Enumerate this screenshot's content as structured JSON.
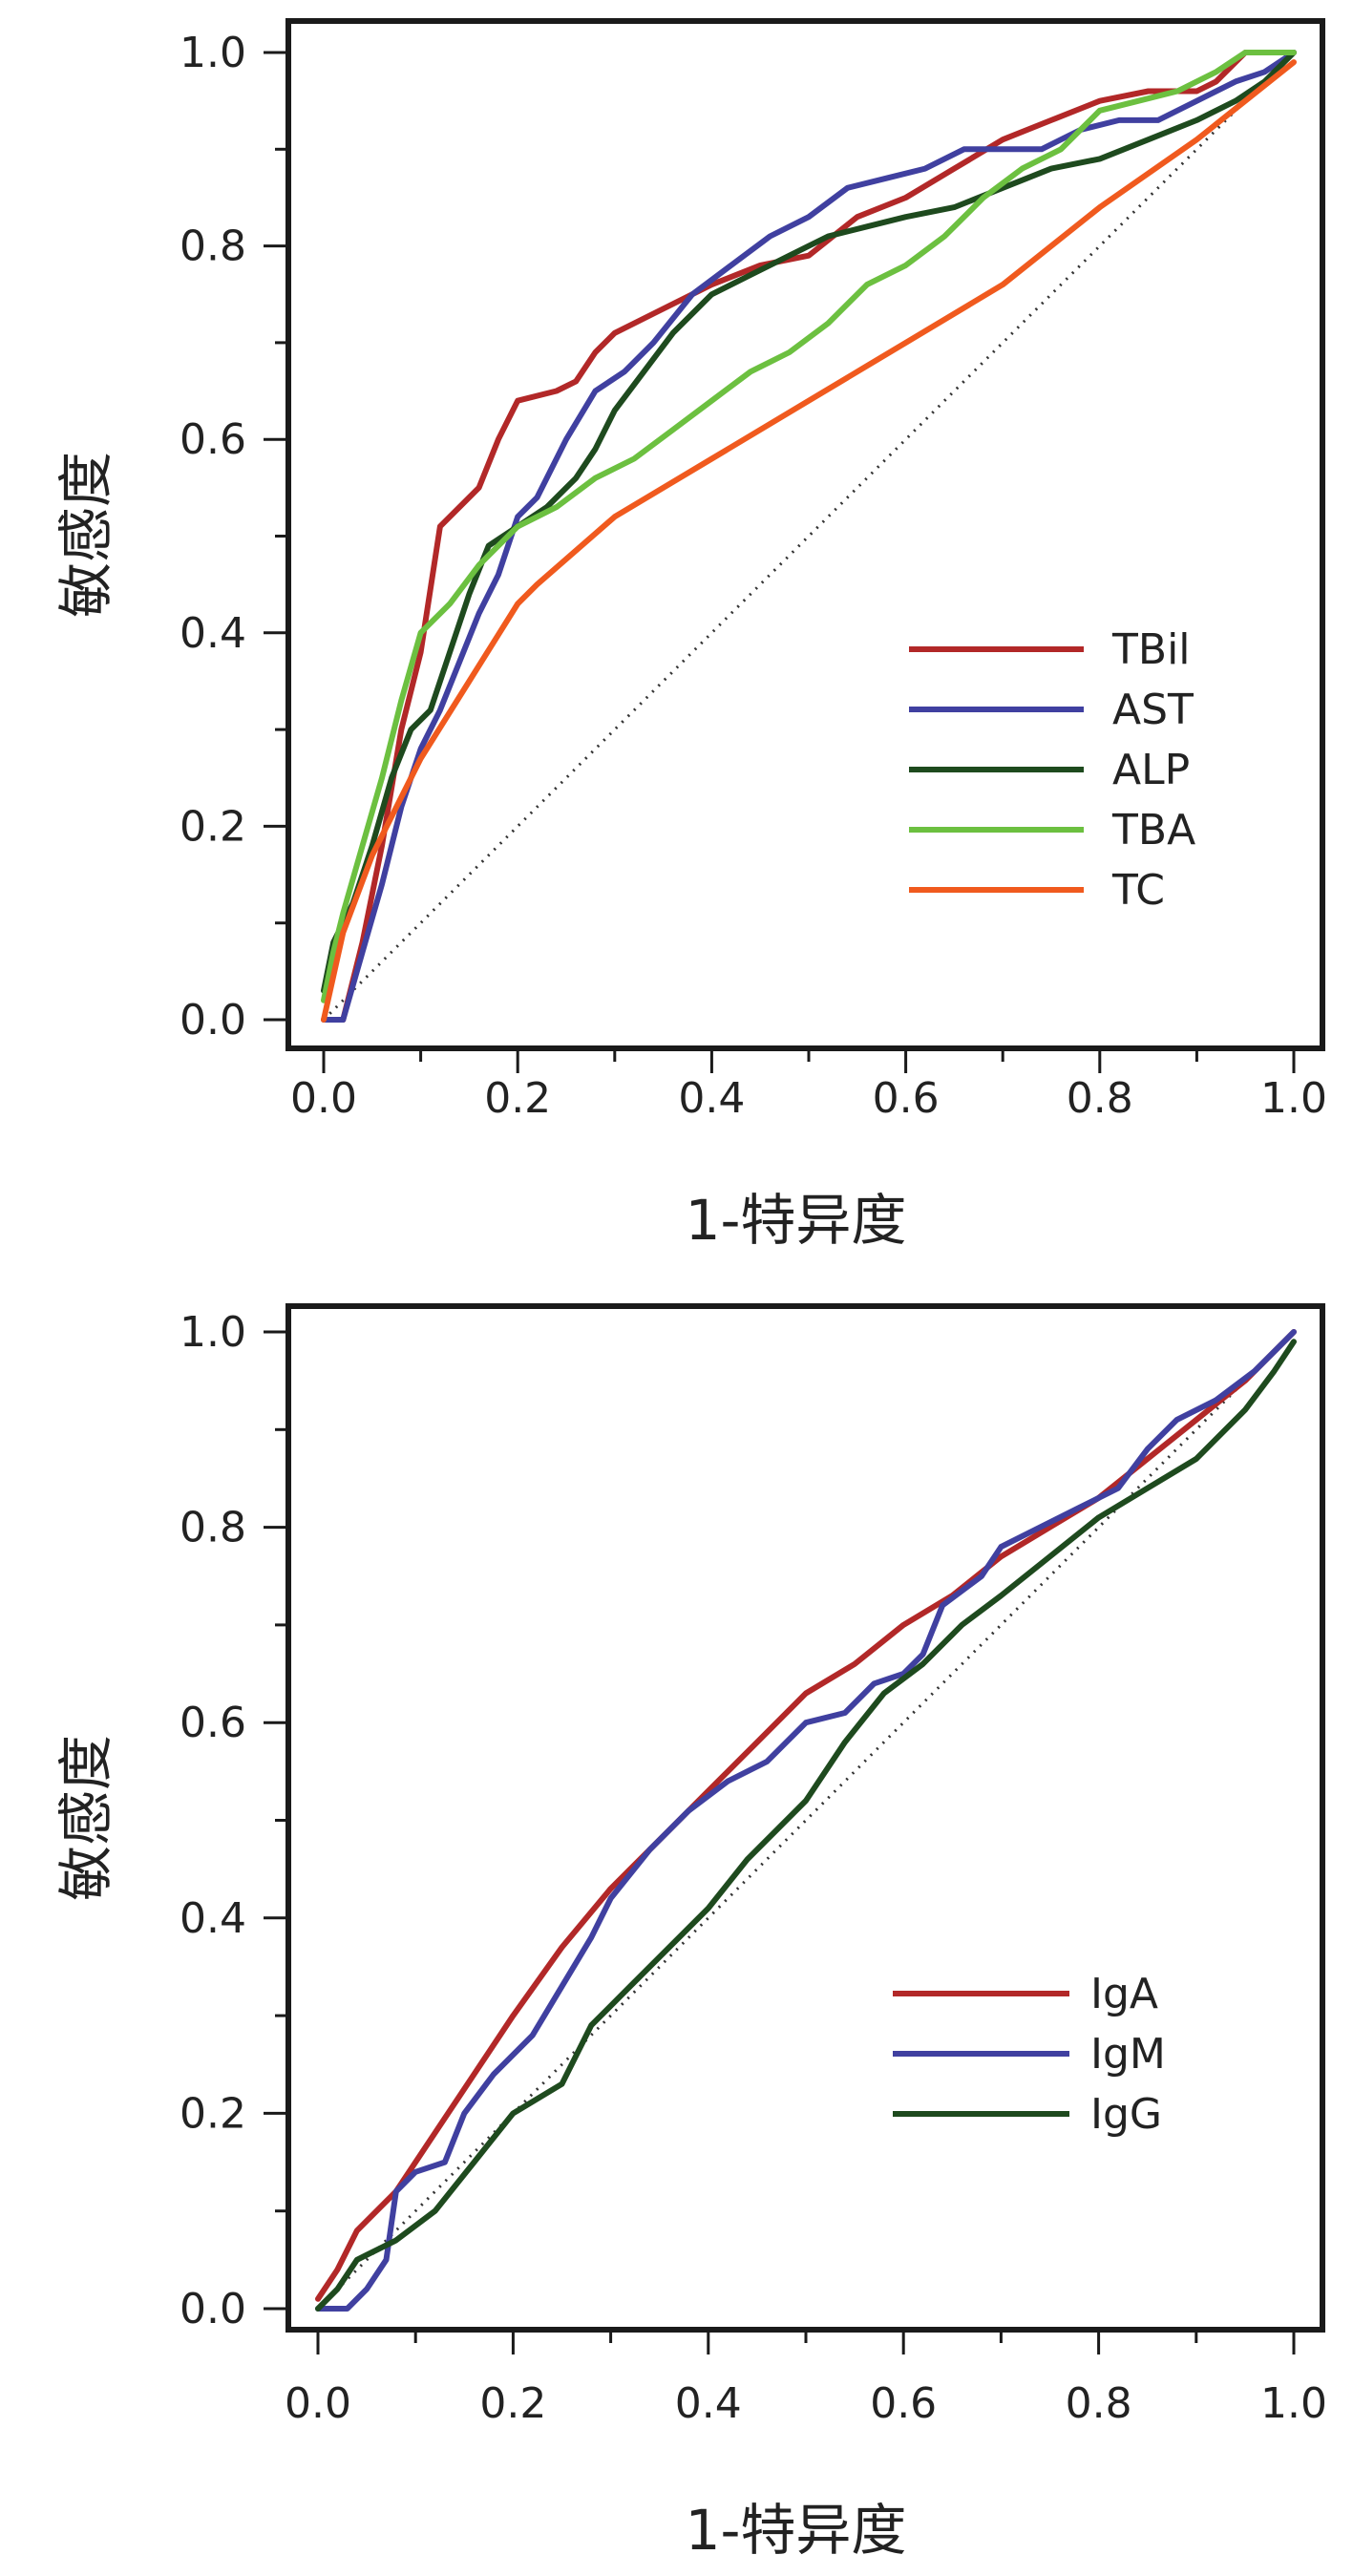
{
  "chart_data": [
    {
      "type": "line",
      "title": "",
      "xlabel": "1-特异度",
      "ylabel": "敏感度",
      "xlim": [
        0.0,
        1.0
      ],
      "ylim": [
        0.0,
        1.0
      ],
      "x_ticks": [
        "0.0",
        "0.2",
        "0.4",
        "0.6",
        "0.8",
        "1.0"
      ],
      "y_ticks": [
        "0.0",
        "0.2",
        "0.4",
        "0.6",
        "0.8",
        "1.0"
      ],
      "legend": "bottom-right",
      "reference_line": "diagonal-dotted",
      "series": [
        {
          "name": "TBil",
          "color": "#b22828",
          "points": [
            [
              0,
              0
            ],
            [
              0.02,
              0
            ],
            [
              0.04,
              0.08
            ],
            [
              0.06,
              0.18
            ],
            [
              0.08,
              0.3
            ],
            [
              0.1,
              0.38
            ],
            [
              0.12,
              0.51
            ],
            [
              0.14,
              0.53
            ],
            [
              0.16,
              0.55
            ],
            [
              0.18,
              0.6
            ],
            [
              0.2,
              0.64
            ],
            [
              0.24,
              0.65
            ],
            [
              0.26,
              0.66
            ],
            [
              0.28,
              0.69
            ],
            [
              0.3,
              0.71
            ],
            [
              0.34,
              0.73
            ],
            [
              0.4,
              0.76
            ],
            [
              0.45,
              0.78
            ],
            [
              0.5,
              0.79
            ],
            [
              0.55,
              0.83
            ],
            [
              0.6,
              0.85
            ],
            [
              0.65,
              0.88
            ],
            [
              0.7,
              0.91
            ],
            [
              0.75,
              0.93
            ],
            [
              0.8,
              0.95
            ],
            [
              0.85,
              0.96
            ],
            [
              0.9,
              0.96
            ],
            [
              0.92,
              0.97
            ],
            [
              0.95,
              1.0
            ],
            [
              0.98,
              1.0
            ],
            [
              1.0,
              1.0
            ]
          ]
        },
        {
          "name": "AST",
          "color": "#4040a0",
          "points": [
            [
              0,
              0
            ],
            [
              0.02,
              0
            ],
            [
              0.04,
              0.07
            ],
            [
              0.06,
              0.14
            ],
            [
              0.08,
              0.22
            ],
            [
              0.1,
              0.28
            ],
            [
              0.12,
              0.32
            ],
            [
              0.14,
              0.37
            ],
            [
              0.16,
              0.42
            ],
            [
              0.18,
              0.46
            ],
            [
              0.2,
              0.52
            ],
            [
              0.22,
              0.54
            ],
            [
              0.25,
              0.6
            ],
            [
              0.28,
              0.65
            ],
            [
              0.31,
              0.67
            ],
            [
              0.34,
              0.7
            ],
            [
              0.38,
              0.75
            ],
            [
              0.42,
              0.78
            ],
            [
              0.46,
              0.81
            ],
            [
              0.5,
              0.83
            ],
            [
              0.54,
              0.86
            ],
            [
              0.58,
              0.87
            ],
            [
              0.62,
              0.88
            ],
            [
              0.66,
              0.9
            ],
            [
              0.7,
              0.9
            ],
            [
              0.74,
              0.9
            ],
            [
              0.78,
              0.92
            ],
            [
              0.82,
              0.93
            ],
            [
              0.86,
              0.93
            ],
            [
              0.9,
              0.95
            ],
            [
              0.94,
              0.97
            ],
            [
              0.97,
              0.98
            ],
            [
              1.0,
              1.0
            ]
          ]
        },
        {
          "name": "ALP",
          "color": "#1e4a1e",
          "points": [
            [
              0,
              0.03
            ],
            [
              0.01,
              0.08
            ],
            [
              0.03,
              0.12
            ],
            [
              0.05,
              0.18
            ],
            [
              0.07,
              0.25
            ],
            [
              0.09,
              0.3
            ],
            [
              0.11,
              0.32
            ],
            [
              0.13,
              0.38
            ],
            [
              0.15,
              0.44
            ],
            [
              0.17,
              0.49
            ],
            [
              0.2,
              0.51
            ],
            [
              0.23,
              0.53
            ],
            [
              0.26,
              0.56
            ],
            [
              0.28,
              0.59
            ],
            [
              0.3,
              0.63
            ],
            [
              0.33,
              0.67
            ],
            [
              0.36,
              0.71
            ],
            [
              0.4,
              0.75
            ],
            [
              0.44,
              0.77
            ],
            [
              0.48,
              0.79
            ],
            [
              0.52,
              0.81
            ],
            [
              0.56,
              0.82
            ],
            [
              0.6,
              0.83
            ],
            [
              0.65,
              0.84
            ],
            [
              0.7,
              0.86
            ],
            [
              0.75,
              0.88
            ],
            [
              0.8,
              0.89
            ],
            [
              0.85,
              0.91
            ],
            [
              0.9,
              0.93
            ],
            [
              0.94,
              0.95
            ],
            [
              0.97,
              0.97
            ],
            [
              1.0,
              1.0
            ]
          ]
        },
        {
          "name": "TBA",
          "color": "#6cc040",
          "points": [
            [
              0,
              0.02
            ],
            [
              0.01,
              0.07
            ],
            [
              0.02,
              0.11
            ],
            [
              0.04,
              0.18
            ],
            [
              0.06,
              0.25
            ],
            [
              0.08,
              0.33
            ],
            [
              0.1,
              0.4
            ],
            [
              0.13,
              0.43
            ],
            [
              0.16,
              0.47
            ],
            [
              0.2,
              0.51
            ],
            [
              0.24,
              0.53
            ],
            [
              0.28,
              0.56
            ],
            [
              0.32,
              0.58
            ],
            [
              0.36,
              0.61
            ],
            [
              0.4,
              0.64
            ],
            [
              0.44,
              0.67
            ],
            [
              0.48,
              0.69
            ],
            [
              0.52,
              0.72
            ],
            [
              0.56,
              0.76
            ],
            [
              0.6,
              0.78
            ],
            [
              0.64,
              0.81
            ],
            [
              0.68,
              0.85
            ],
            [
              0.72,
              0.88
            ],
            [
              0.76,
              0.9
            ],
            [
              0.8,
              0.94
            ],
            [
              0.84,
              0.95
            ],
            [
              0.88,
              0.96
            ],
            [
              0.92,
              0.98
            ],
            [
              0.95,
              1.0
            ],
            [
              1.0,
              1.0
            ]
          ]
        },
        {
          "name": "TC",
          "color": "#f05a1e",
          "points": [
            [
              0,
              0
            ],
            [
              0.02,
              0.09
            ],
            [
              0.05,
              0.17
            ],
            [
              0.1,
              0.27
            ],
            [
              0.15,
              0.35
            ],
            [
              0.2,
              0.43
            ],
            [
              0.22,
              0.45
            ],
            [
              0.3,
              0.52
            ],
            [
              0.4,
              0.58
            ],
            [
              0.5,
              0.64
            ],
            [
              0.6,
              0.7
            ],
            [
              0.7,
              0.76
            ],
            [
              0.8,
              0.84
            ],
            [
              0.9,
              0.91
            ],
            [
              1.0,
              0.99
            ]
          ]
        }
      ]
    },
    {
      "type": "line",
      "title": "",
      "xlabel": "1-特异度",
      "ylabel": "敏感度",
      "xlim": [
        0.0,
        1.0
      ],
      "ylim": [
        0.0,
        1.0
      ],
      "x_ticks": [
        "0.0",
        "0.2",
        "0.4",
        "0.6",
        "0.8",
        "1.0"
      ],
      "y_ticks": [
        "0.0",
        "0.2",
        "0.4",
        "0.6",
        "0.8",
        "1.0"
      ],
      "legend": "bottom-right",
      "reference_line": "diagonal-dotted",
      "series": [
        {
          "name": "IgA",
          "color": "#b22828",
          "points": [
            [
              0,
              0.01
            ],
            [
              0.02,
              0.04
            ],
            [
              0.04,
              0.08
            ],
            [
              0.08,
              0.12
            ],
            [
              0.12,
              0.18
            ],
            [
              0.16,
              0.24
            ],
            [
              0.2,
              0.3
            ],
            [
              0.25,
              0.37
            ],
            [
              0.3,
              0.43
            ],
            [
              0.35,
              0.48
            ],
            [
              0.4,
              0.53
            ],
            [
              0.45,
              0.58
            ],
            [
              0.5,
              0.63
            ],
            [
              0.55,
              0.66
            ],
            [
              0.6,
              0.7
            ],
            [
              0.65,
              0.73
            ],
            [
              0.7,
              0.77
            ],
            [
              0.75,
              0.8
            ],
            [
              0.8,
              0.83
            ],
            [
              0.85,
              0.87
            ],
            [
              0.9,
              0.91
            ],
            [
              0.95,
              0.95
            ],
            [
              1.0,
              1.0
            ]
          ]
        },
        {
          "name": "IgM",
          "color": "#4040a0",
          "points": [
            [
              0,
              0
            ],
            [
              0.03,
              0
            ],
            [
              0.05,
              0.02
            ],
            [
              0.07,
              0.05
            ],
            [
              0.08,
              0.12
            ],
            [
              0.1,
              0.14
            ],
            [
              0.13,
              0.15
            ],
            [
              0.15,
              0.2
            ],
            [
              0.18,
              0.24
            ],
            [
              0.22,
              0.28
            ],
            [
              0.25,
              0.33
            ],
            [
              0.28,
              0.38
            ],
            [
              0.3,
              0.42
            ],
            [
              0.34,
              0.47
            ],
            [
              0.38,
              0.51
            ],
            [
              0.42,
              0.54
            ],
            [
              0.46,
              0.56
            ],
            [
              0.5,
              0.6
            ],
            [
              0.54,
              0.61
            ],
            [
              0.57,
              0.64
            ],
            [
              0.6,
              0.65
            ],
            [
              0.62,
              0.67
            ],
            [
              0.64,
              0.72
            ],
            [
              0.68,
              0.75
            ],
            [
              0.7,
              0.78
            ],
            [
              0.74,
              0.8
            ],
            [
              0.78,
              0.82
            ],
            [
              0.82,
              0.84
            ],
            [
              0.85,
              0.88
            ],
            [
              0.88,
              0.91
            ],
            [
              0.92,
              0.93
            ],
            [
              0.96,
              0.96
            ],
            [
              0.99,
              0.99
            ],
            [
              1.0,
              1.0
            ]
          ]
        },
        {
          "name": "IgG",
          "color": "#1e4a1e",
          "points": [
            [
              0,
              0
            ],
            [
              0.02,
              0.02
            ],
            [
              0.04,
              0.05
            ],
            [
              0.08,
              0.07
            ],
            [
              0.12,
              0.1
            ],
            [
              0.16,
              0.15
            ],
            [
              0.2,
              0.2
            ],
            [
              0.25,
              0.23
            ],
            [
              0.28,
              0.29
            ],
            [
              0.32,
              0.33
            ],
            [
              0.36,
              0.37
            ],
            [
              0.4,
              0.41
            ],
            [
              0.44,
              0.46
            ],
            [
              0.5,
              0.52
            ],
            [
              0.54,
              0.58
            ],
            [
              0.58,
              0.63
            ],
            [
              0.62,
              0.66
            ],
            [
              0.66,
              0.7
            ],
            [
              0.7,
              0.73
            ],
            [
              0.75,
              0.77
            ],
            [
              0.8,
              0.81
            ],
            [
              0.85,
              0.84
            ],
            [
              0.9,
              0.87
            ],
            [
              0.95,
              0.92
            ],
            [
              0.98,
              0.96
            ],
            [
              1.0,
              0.99
            ]
          ]
        }
      ]
    }
  ]
}
